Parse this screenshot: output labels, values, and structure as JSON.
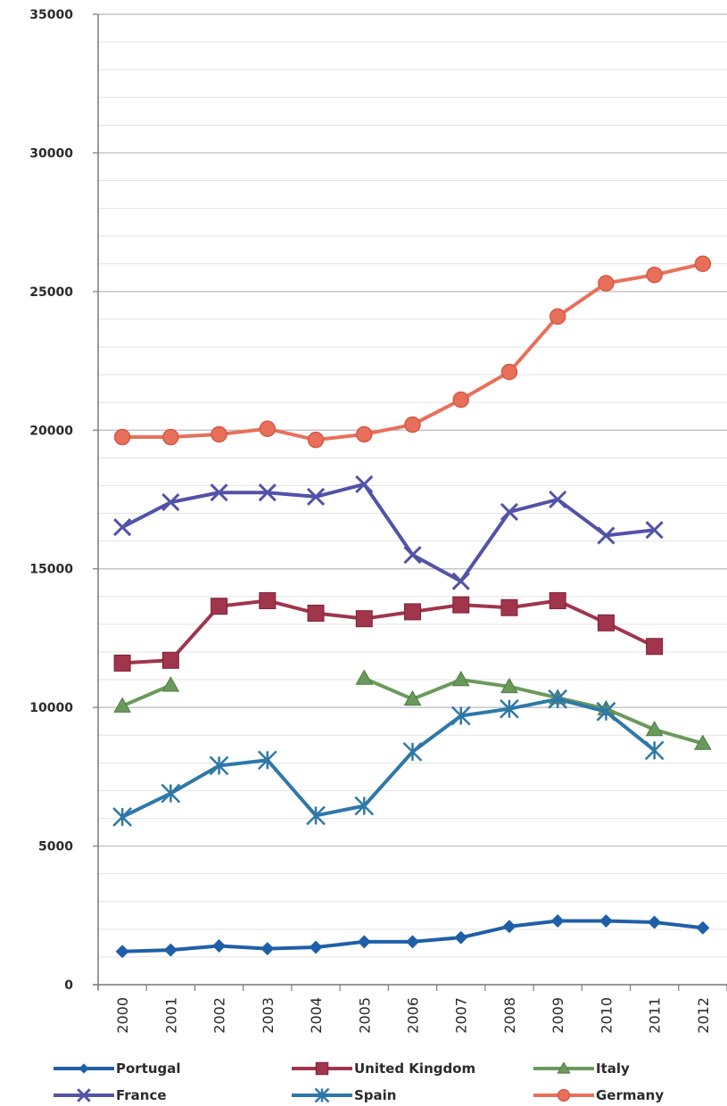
{
  "chart_data": {
    "type": "line",
    "title": "",
    "xlabel": "",
    "ylabel": "",
    "ylim": [
      0,
      35000
    ],
    "yticks": [
      "0",
      "5000",
      "10000",
      "15000",
      "20000",
      "25000",
      "30000",
      "35000"
    ],
    "ytick_values": [
      0,
      5000,
      10000,
      15000,
      20000,
      25000,
      30000,
      35000
    ],
    "minor_gridlines_every": 1000,
    "categories": [
      "2000",
      "2001",
      "2002",
      "2003",
      "2004",
      "2005",
      "2006",
      "2007",
      "2008",
      "2009",
      "2010",
      "2011",
      "2012"
    ],
    "legend_position": "bottom",
    "series": [
      {
        "name": "Portugal",
        "color": "#1f5fa8",
        "marker": "diamond",
        "values": [
          1200,
          1250,
          1400,
          1300,
          1350,
          1550,
          1550,
          1700,
          2100,
          2300,
          2300,
          2250,
          2050
        ]
      },
      {
        "name": "United Kingdom",
        "color": "#a0354c",
        "marker": "square",
        "values": [
          11600,
          11700,
          13650,
          13850,
          13400,
          13200,
          13450,
          13700,
          13600,
          13850,
          13050,
          12200,
          null
        ]
      },
      {
        "name": "Italy",
        "color": "#6a9a5a",
        "marker": "triangle",
        "values": [
          10050,
          10800,
          null,
          null,
          null,
          11050,
          10300,
          11000,
          10750,
          10350,
          9950,
          9200,
          8700
        ]
      },
      {
        "name": "France",
        "color": "#5252a8",
        "marker": "x",
        "values": [
          16500,
          17400,
          17750,
          17750,
          17600,
          18050,
          15500,
          14550,
          17050,
          17500,
          16200,
          16400,
          null
        ]
      },
      {
        "name": "Spain",
        "color": "#2e78a8",
        "marker": "star",
        "values": [
          6050,
          6900,
          7900,
          8100,
          6100,
          6450,
          8400,
          9700,
          9950,
          10300,
          9850,
          8450,
          null
        ]
      },
      {
        "name": "Germany",
        "color": "#e8705a",
        "marker": "circle",
        "values": [
          19750,
          19750,
          19850,
          20050,
          19650,
          19850,
          20200,
          21100,
          22100,
          24100,
          25300,
          25600,
          26000
        ]
      }
    ]
  }
}
